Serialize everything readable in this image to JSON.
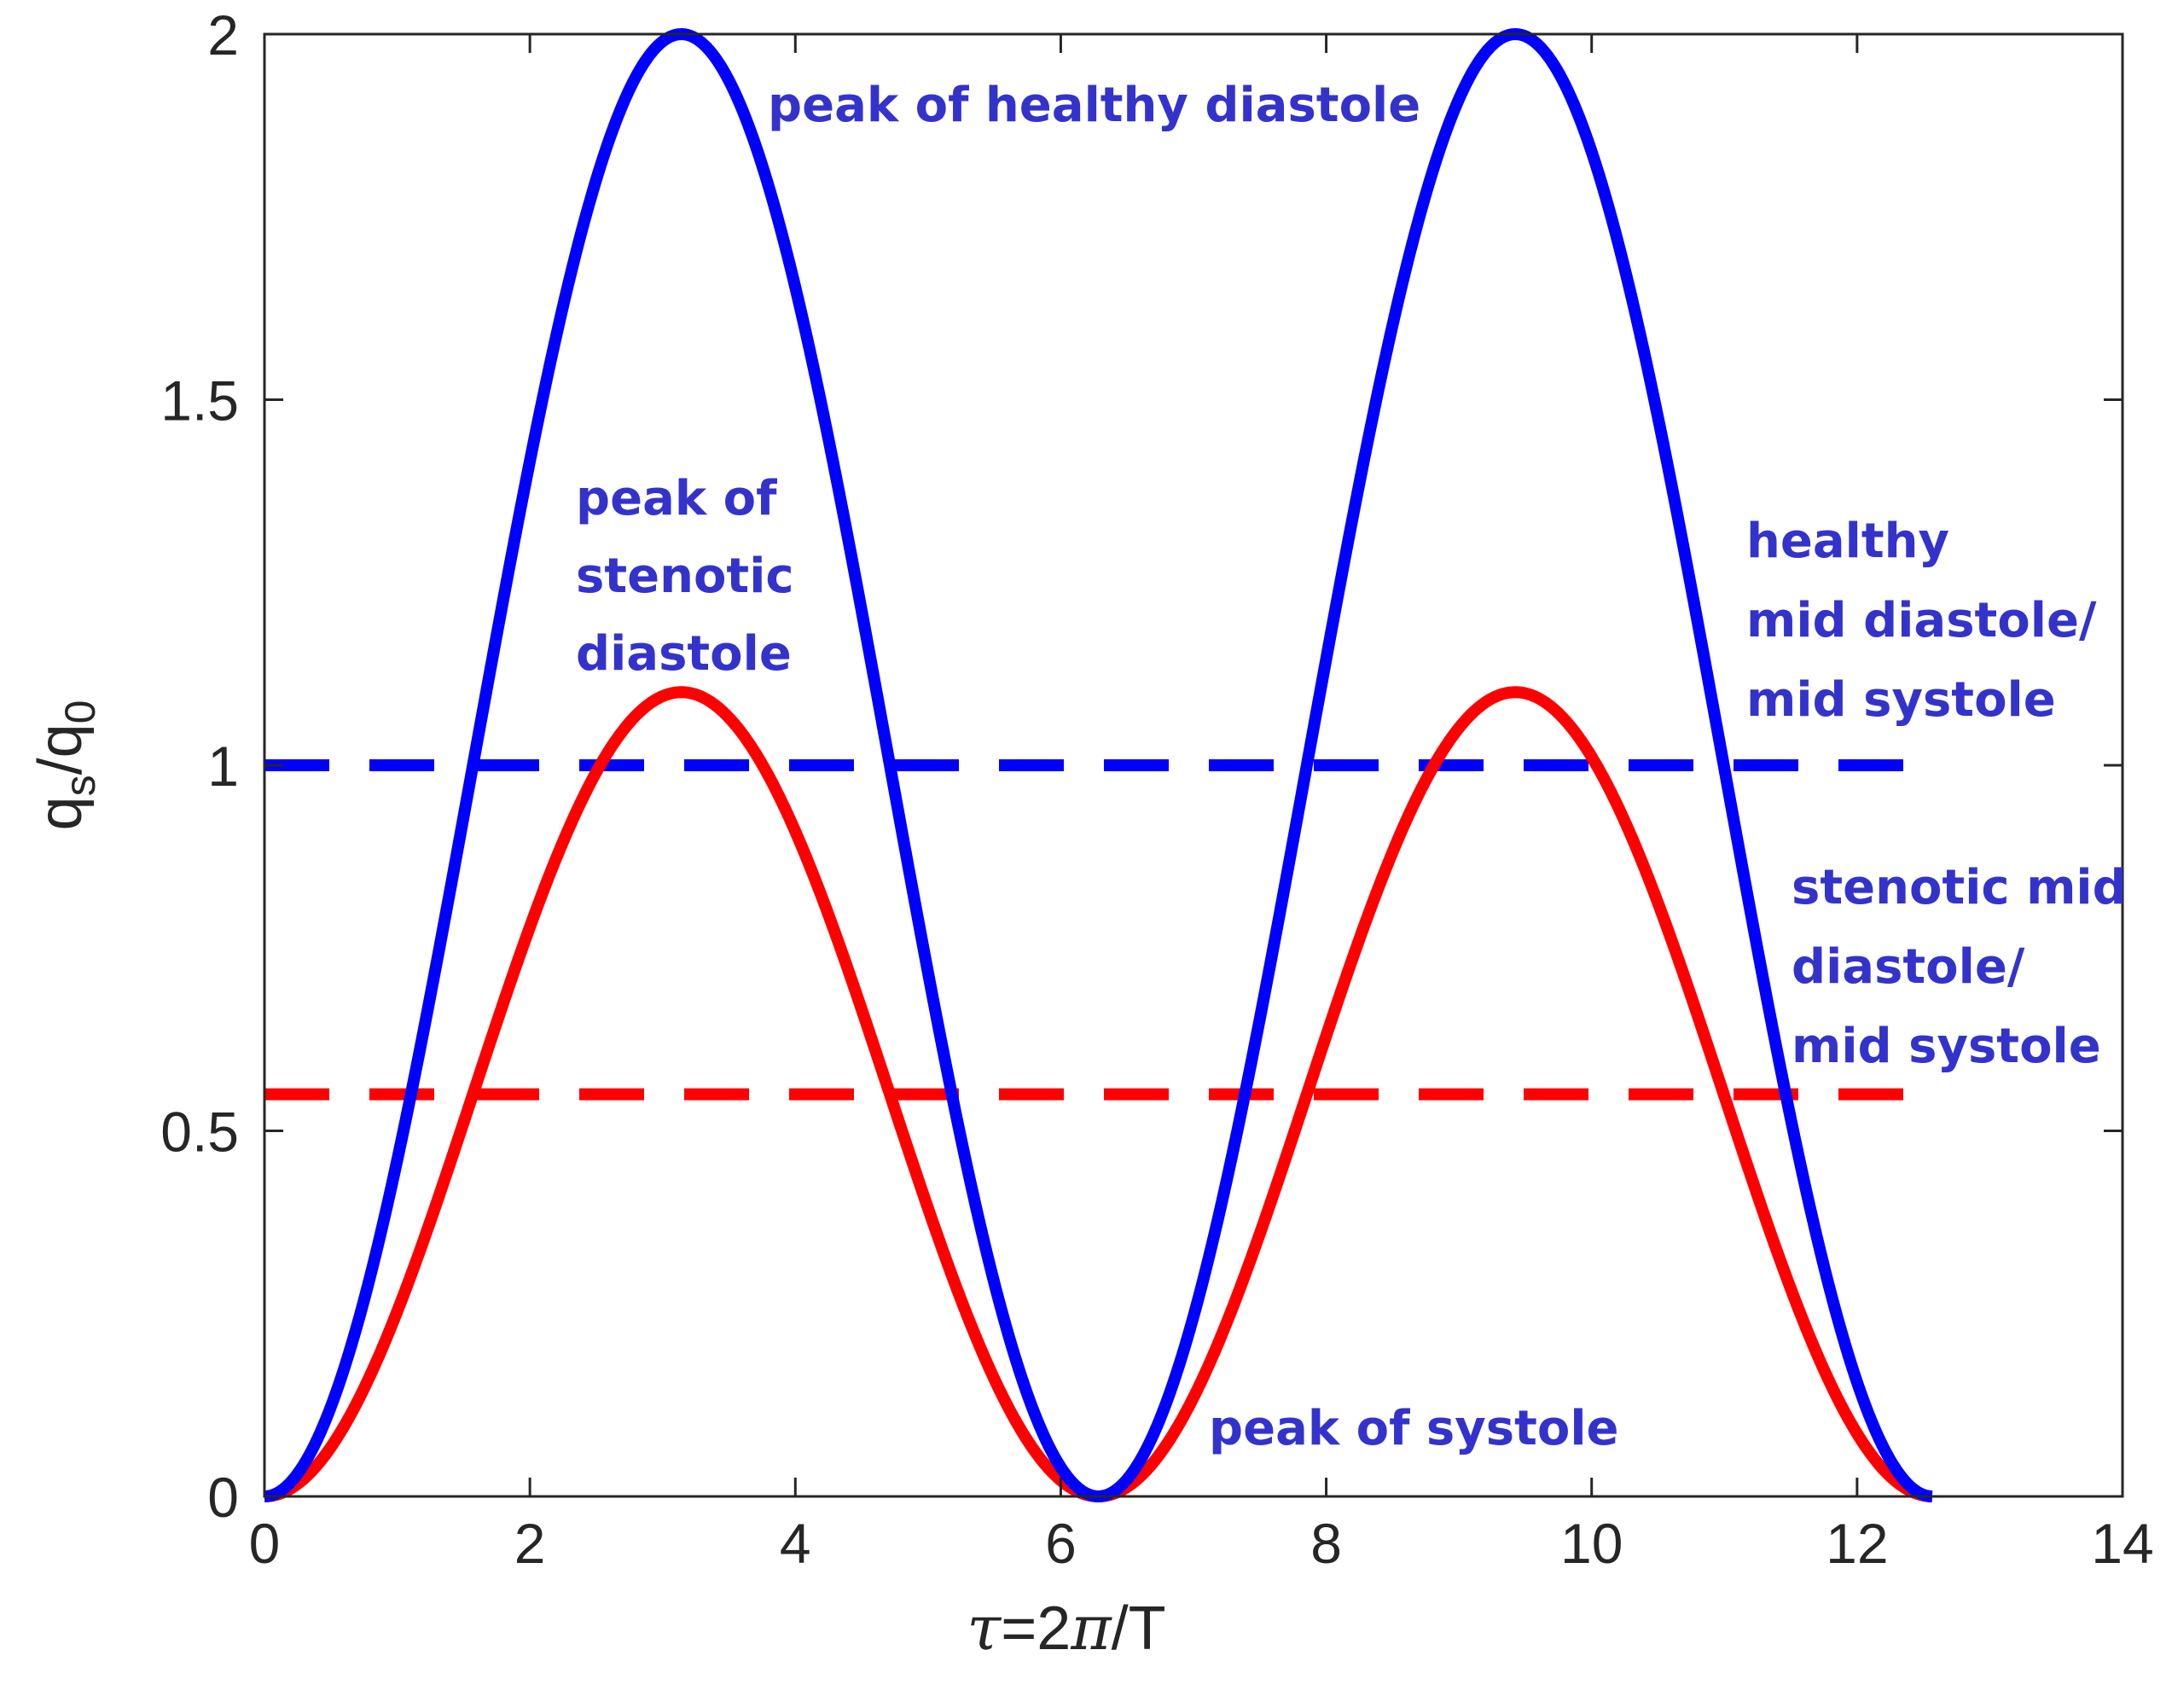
{
  "chart_data": {
    "type": "line",
    "title": "",
    "xlabel": {
      "tau": "τ",
      "rest_a": "=2",
      "pi": "π",
      "rest_b": "/T"
    },
    "ylabel": {
      "q1": "q",
      "sub1": "s",
      "slash": "/q",
      "sub2": "0"
    },
    "xlim": [
      0,
      14
    ],
    "ylim": [
      0,
      2
    ],
    "xticks": [
      0,
      2,
      4,
      6,
      8,
      10,
      12,
      14
    ],
    "xtick_labels": [
      "0",
      "2",
      "4",
      "6",
      "8",
      "10",
      "12",
      "14"
    ],
    "yticks": [
      0,
      0.5,
      1,
      1.5,
      2
    ],
    "ytick_labels": [
      "0",
      "0.5",
      "1",
      "1.5",
      "2"
    ],
    "grid": false,
    "series": [
      {
        "name": "healthy",
        "color": "#0000ff",
        "style": "solid",
        "formula": "1 - cos(x)",
        "x_range": [
          0,
          12.566
        ]
      },
      {
        "name": "stenotic",
        "color": "#ff0000",
        "style": "solid",
        "formula": "0.55 * (1 - cos(x))",
        "x_range": [
          0,
          12.566
        ]
      },
      {
        "name": "healthy mean",
        "color": "#0000ff",
        "style": "dashed",
        "constant": 1.0,
        "x_range": [
          0,
          12.566
        ]
      },
      {
        "name": "stenotic mean",
        "color": "#ff0000",
        "style": "dashed",
        "constant": 0.55,
        "x_range": [
          0,
          12.566
        ]
      }
    ],
    "annotations": [
      {
        "name": "peak-healthy-diastole",
        "color": "#3333cc",
        "lines": [
          "peak of healthy diastole"
        ]
      },
      {
        "name": "peak-stenotic-diastole",
        "color": "#3333cc",
        "lines": [
          "peak of",
          "stenotic",
          "diastole"
        ]
      },
      {
        "name": "healthy-mid",
        "color": "#3333cc",
        "lines": [
          "healthy",
          "mid diastole/",
          "mid systole"
        ]
      },
      {
        "name": "stenotic-mid",
        "color": "#3333cc",
        "lines": [
          "stenotic mid",
          "diastole/",
          "mid systole"
        ]
      },
      {
        "name": "peak-systole",
        "color": "#3333cc",
        "lines": [
          "peak of systole"
        ]
      }
    ]
  }
}
